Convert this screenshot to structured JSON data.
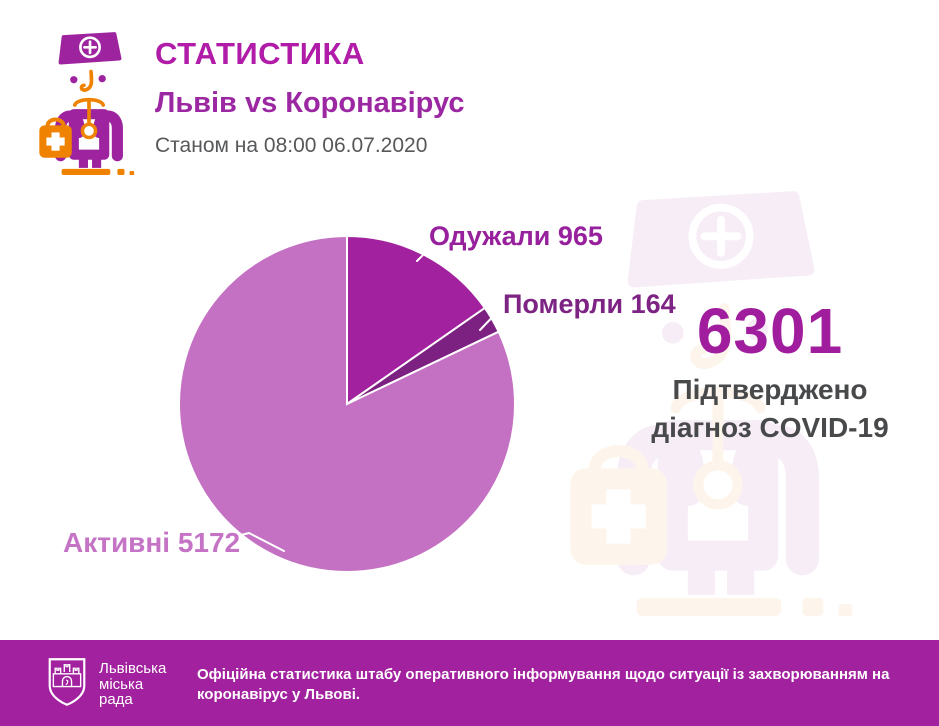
{
  "header": {
    "title": "СТАТИСТИКА",
    "subtitle": "Львів vs Коронавірус",
    "as_of": "Станом на 08:00 06.07.2020"
  },
  "chart_data": {
    "type": "pie",
    "start_angle_deg": 0,
    "direction": "clockwise",
    "legend_position": "callout-labels",
    "total": 6301,
    "slices": [
      {
        "label": "Одужали",
        "value": 965,
        "color": "#a2219e",
        "callout_color": "#97209c"
      },
      {
        "label": "Померли",
        "value": 164,
        "color": "#7c2082",
        "callout_color": "#7c2383"
      },
      {
        "label": "Активні",
        "value": 5172,
        "color": "#c471c3",
        "callout_color": "#c573c5"
      }
    ]
  },
  "summary": {
    "total": "6301",
    "line1": "Підтверджено",
    "line2": "діагноз COVID-19"
  },
  "footer": {
    "org_lines": [
      "Львівська",
      "міська",
      "рада"
    ],
    "note_lines": [
      "Офіційна статистика штабу оперативного інформування щодо ситуації із захворюванням на",
      "коронавірус у Львові."
    ]
  },
  "icons": {
    "doctor": "doctor-with-stethoscope-and-first-aid-kit",
    "watermark": "doctor-watermark",
    "crest": "lviv-city-council-coat-of-arms"
  },
  "colors": {
    "title": "#b01ba8",
    "subtitle": "#9c27a2",
    "date_text": "#57585a",
    "total_number": "#a01d9d",
    "summary_text": "#48494b",
    "footer_bg": "#a2219e",
    "footer_text": "#ffffff",
    "doctor_purple": "#9e239e",
    "doctor_orange": "#ef8200",
    "leader_line": "#ffffff"
  }
}
